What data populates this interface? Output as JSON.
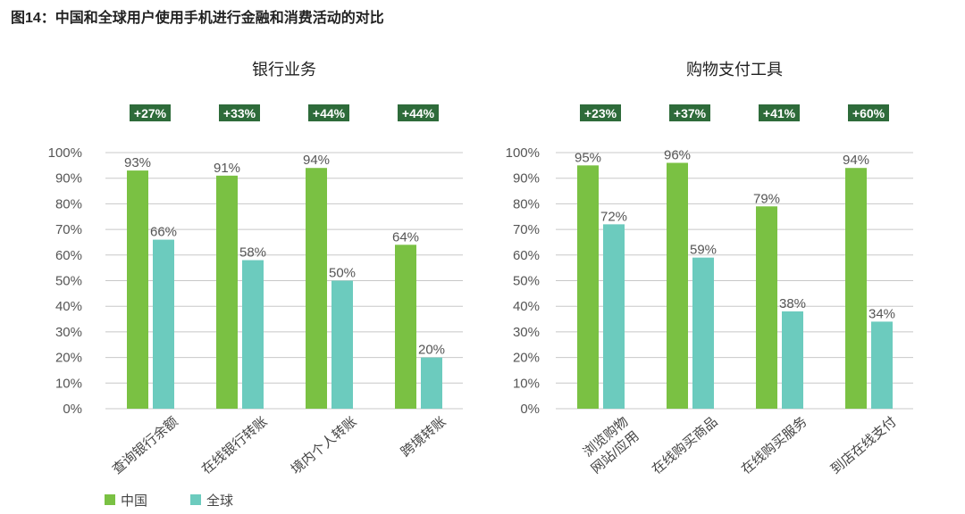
{
  "figure_title": "图14：中国和全球用户使用手机进行金融和消费活动的对比",
  "colors": {
    "china": "#7AC143",
    "global": "#6CCBBE",
    "badge": "#2E6B3A",
    "grid": "#c8c8c8"
  },
  "legend": {
    "china": "中国",
    "global": "全球"
  },
  "chart_data": [
    {
      "type": "bar",
      "title": "银行业务",
      "categories": [
        [
          "查询银行余额"
        ],
        [
          "在线银行转账"
        ],
        [
          "境内个人转账"
        ],
        [
          "跨境转账"
        ]
      ],
      "series": [
        {
          "name": "中国",
          "values": [
            93,
            91,
            94,
            64
          ]
        },
        {
          "name": "全球",
          "values": [
            66,
            58,
            50,
            20
          ]
        }
      ],
      "differences": [
        "+27%",
        "+33%",
        "+44%",
        "+44%"
      ],
      "yticks": [
        "0%",
        "10%",
        "20%",
        "30%",
        "40%",
        "50%",
        "60%",
        "70%",
        "80%",
        "90%",
        "100%"
      ],
      "ylim": [
        0,
        100
      ],
      "grid": true
    },
    {
      "type": "bar",
      "title": "购物支付工具",
      "categories": [
        [
          "浏览购物",
          "网站/应用"
        ],
        [
          "在线购买商品"
        ],
        [
          "在线购买服务"
        ],
        [
          "到店在线支付"
        ]
      ],
      "series": [
        {
          "name": "中国",
          "values": [
            95,
            96,
            79,
            94
          ]
        },
        {
          "name": "全球",
          "values": [
            72,
            59,
            38,
            34
          ]
        }
      ],
      "differences": [
        "+23%",
        "+37%",
        "+41%",
        "+60%"
      ],
      "yticks": [
        "0%",
        "10%",
        "20%",
        "30%",
        "40%",
        "50%",
        "60%",
        "70%",
        "80%",
        "90%",
        "100%"
      ],
      "ylim": [
        0,
        100
      ],
      "grid": true
    }
  ]
}
